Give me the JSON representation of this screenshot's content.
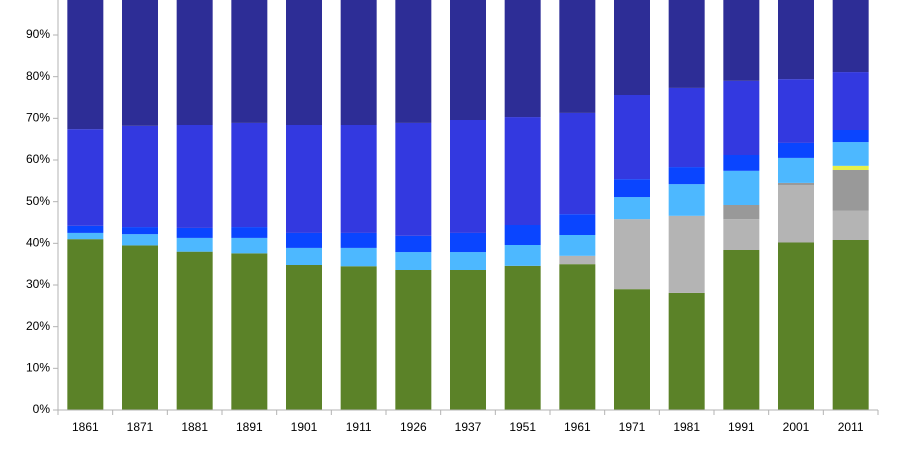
{
  "chart_data": {
    "type": "stacked_bar",
    "categories": [
      "1861",
      "1871",
      "1881",
      "1891",
      "1901",
      "1911",
      "1926",
      "1937",
      "1951",
      "1961",
      "1971",
      "1981",
      "1991",
      "2001",
      "2011"
    ],
    "series": [
      {
        "color": "#5b8228",
        "values": [
          41,
          39.5,
          38,
          37.6,
          34.8,
          34.5,
          33.6,
          33.6,
          34.6,
          35,
          29,
          28.1,
          38.4,
          40.2,
          40.8
        ]
      },
      {
        "color": "#b4b4b4",
        "values": [
          0,
          0,
          0,
          0,
          0,
          0,
          0,
          0,
          0,
          2,
          16.8,
          18.5,
          7.4,
          13.8,
          7
        ]
      },
      {
        "color": "#999999",
        "values": [
          0,
          0,
          0,
          0,
          0,
          0,
          0,
          0,
          0,
          0,
          0,
          0,
          3.4,
          0.5,
          9.8
        ]
      },
      {
        "color": "#e6f04a",
        "values": [
          0,
          0,
          0,
          0,
          0,
          0,
          0,
          0,
          0,
          0,
          0,
          0,
          0,
          0,
          1
        ]
      },
      {
        "color": "#4db8ff",
        "values": [
          1.5,
          2.7,
          3.3,
          3.7,
          4.1,
          4.4,
          4.3,
          4.3,
          5,
          5,
          5.3,
          7.6,
          8.2,
          6,
          5.7
        ]
      },
      {
        "color": "#0a45ff",
        "values": [
          1.7,
          1.7,
          2.4,
          2.6,
          3.6,
          3.6,
          3.9,
          4.6,
          4.8,
          5,
          4.3,
          4.1,
          3.8,
          3.6,
          2.9
        ]
      },
      {
        "color": "#3339e0",
        "values": [
          23.2,
          24.3,
          24.7,
          25,
          25.9,
          25.9,
          27.1,
          27.1,
          25.9,
          24.3,
          20.2,
          19,
          17.8,
          15.3,
          13.9
        ]
      },
      {
        "color": "#2d2d96",
        "values": [
          32.6,
          31.8,
          31.6,
          31.1,
          31.6,
          31.6,
          31.1,
          30.4,
          29.7,
          28.7,
          24.4,
          22.7,
          21,
          20.6,
          18.9
        ]
      }
    ],
    "ylim": [
      0,
      100
    ],
    "yticks": [
      {
        "value": 0,
        "label": "0%"
      },
      {
        "value": 10,
        "label": "10%"
      },
      {
        "value": 20,
        "label": "20%"
      },
      {
        "value": 30,
        "label": "30%"
      },
      {
        "value": 40,
        "label": "40%"
      },
      {
        "value": 50,
        "label": "50%"
      },
      {
        "value": 60,
        "label": "60%"
      },
      {
        "value": 70,
        "label": "70%"
      },
      {
        "value": 80,
        "label": "80%"
      },
      {
        "value": 90,
        "label": "90%"
      }
    ],
    "grid": false
  }
}
